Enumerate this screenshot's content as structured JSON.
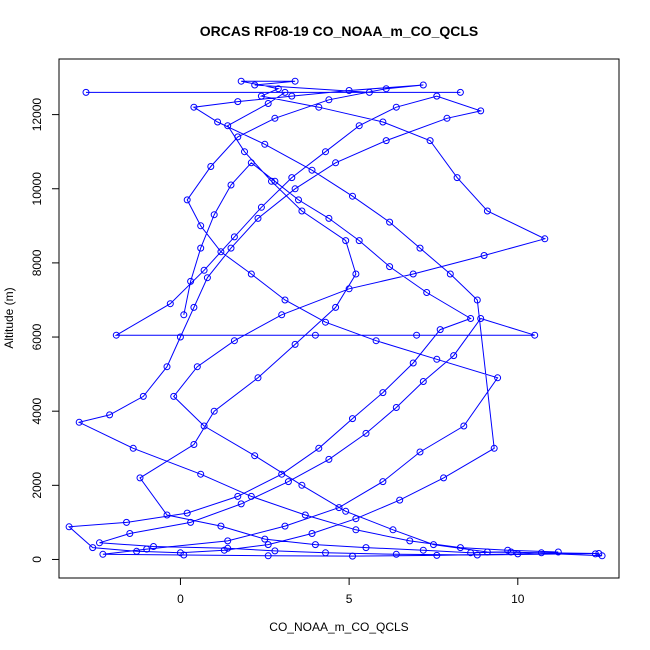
{
  "chart_data": {
    "type": "line",
    "title": "ORCAS RF08-19 CO_NOAA_m_CO_QCLS",
    "xlabel": "CO_NOAA_m_CO_QCLS",
    "ylabel": "Altitude (m)",
    "xlim": [
      -3.6,
      13.0
    ],
    "ylim": [
      -500,
      13500
    ],
    "xticks": [
      0,
      5,
      10
    ],
    "yticks": [
      0,
      2000,
      4000,
      6000,
      8000,
      10000,
      12000
    ],
    "grid": false,
    "marker": "open-circle",
    "series": [
      {
        "color": "#0000ff",
        "points": [
          [
            12.3,
            150
          ],
          [
            12.5,
            100
          ],
          [
            9.8,
            200
          ],
          [
            8.6,
            180
          ],
          [
            7.2,
            250
          ],
          [
            5.5,
            320
          ],
          [
            4.0,
            400
          ],
          [
            2.5,
            550
          ],
          [
            1.2,
            900
          ],
          [
            -0.4,
            1200
          ],
          [
            -1.2,
            2200
          ],
          [
            0.4,
            3100
          ],
          [
            1.0,
            4000
          ],
          [
            2.3,
            4900
          ],
          [
            3.4,
            5800
          ],
          [
            4.6,
            6800
          ],
          [
            5.2,
            7700
          ],
          [
            4.9,
            8600
          ],
          [
            3.6,
            9400
          ],
          [
            2.7,
            10200
          ],
          [
            1.9,
            11000
          ],
          [
            1.4,
            11700
          ],
          [
            2.6,
            12300
          ],
          [
            3.1,
            12600
          ],
          [
            -2.8,
            12600
          ],
          [
            8.3,
            12600
          ],
          [
            5.6,
            12600
          ],
          [
            2.2,
            12800
          ],
          [
            3.4,
            12900
          ],
          [
            1.8,
            12900
          ],
          [
            2.9,
            12700
          ],
          [
            2.4,
            12500
          ],
          [
            4.1,
            12200
          ],
          [
            6.0,
            11800
          ],
          [
            7.4,
            11300
          ],
          [
            8.2,
            10300
          ],
          [
            9.1,
            9400
          ],
          [
            10.8,
            8650
          ],
          [
            9.0,
            8200
          ],
          [
            6.9,
            7700
          ],
          [
            5.0,
            7300
          ],
          [
            3.0,
            6600
          ],
          [
            1.6,
            5900
          ],
          [
            0.5,
            5200
          ],
          [
            -0.2,
            4400
          ],
          [
            0.7,
            3600
          ],
          [
            2.2,
            2800
          ],
          [
            3.6,
            2000
          ],
          [
            4.9,
            1300
          ],
          [
            6.3,
            800
          ],
          [
            7.5,
            400
          ],
          [
            9.1,
            200
          ],
          [
            10.7,
            180
          ],
          [
            12.4,
            160
          ],
          [
            8.8,
            120
          ],
          [
            6.4,
            140
          ],
          [
            4.3,
            180
          ],
          [
            2.8,
            230
          ],
          [
            1.4,
            300
          ],
          [
            -0.8,
            350
          ],
          [
            -2.4,
            450
          ],
          [
            -1.5,
            700
          ],
          [
            0.3,
            1000
          ],
          [
            1.8,
            1500
          ],
          [
            3.2,
            2100
          ],
          [
            4.4,
            2700
          ],
          [
            5.5,
            3400
          ],
          [
            6.4,
            4100
          ],
          [
            7.2,
            4800
          ],
          [
            8.1,
            5500
          ],
          [
            8.9,
            6500
          ],
          [
            10.5,
            6050
          ],
          [
            7.0,
            6050
          ],
          [
            4.0,
            6050
          ],
          [
            -1.9,
            6050
          ],
          [
            -0.3,
            6900
          ],
          [
            0.7,
            7800
          ],
          [
            1.6,
            8700
          ],
          [
            2.4,
            9500
          ],
          [
            3.3,
            10300
          ],
          [
            4.3,
            11000
          ],
          [
            5.3,
            11700
          ],
          [
            6.4,
            12200
          ],
          [
            7.6,
            12500
          ],
          [
            8.9,
            12100
          ],
          [
            7.9,
            11900
          ],
          [
            6.1,
            11300
          ],
          [
            4.6,
            10700
          ],
          [
            3.4,
            10000
          ],
          [
            2.3,
            9200
          ],
          [
            1.5,
            8400
          ],
          [
            0.8,
            7600
          ],
          [
            0.4,
            6800
          ],
          [
            0.0,
            6000
          ],
          [
            -0.4,
            5200
          ],
          [
            -1.1,
            4400
          ],
          [
            -2.1,
            3900
          ],
          [
            -3.0,
            3700
          ],
          [
            -1.4,
            3000
          ],
          [
            0.6,
            2300
          ],
          [
            2.1,
            1700
          ],
          [
            3.7,
            1200
          ],
          [
            5.2,
            800
          ],
          [
            6.8,
            500
          ],
          [
            8.3,
            320
          ],
          [
            9.7,
            250
          ],
          [
            11.2,
            200
          ],
          [
            10.0,
            150
          ],
          [
            7.6,
            110
          ],
          [
            5.1,
            90
          ],
          [
            2.6,
            100
          ],
          [
            0.1,
            120
          ],
          [
            -2.3,
            140
          ],
          [
            -1.0,
            280
          ],
          [
            1.4,
            500
          ],
          [
            3.1,
            900
          ],
          [
            4.7,
            1400
          ],
          [
            6.0,
            2100
          ],
          [
            7.1,
            2900
          ],
          [
            8.4,
            3600
          ],
          [
            9.4,
            4900
          ],
          [
            7.6,
            5400
          ],
          [
            5.8,
            5900
          ],
          [
            4.3,
            6400
          ],
          [
            3.1,
            7000
          ],
          [
            2.1,
            7700
          ],
          [
            1.2,
            8300
          ],
          [
            0.6,
            9000
          ],
          [
            0.2,
            9700
          ],
          [
            0.9,
            10600
          ],
          [
            1.7,
            11400
          ],
          [
            2.8,
            11900
          ],
          [
            4.4,
            12400
          ],
          [
            6.1,
            12700
          ],
          [
            7.2,
            12800
          ],
          [
            5.0,
            12650
          ],
          [
            3.3,
            12500
          ],
          [
            1.7,
            12350
          ],
          [
            0.4,
            12200
          ],
          [
            1.1,
            11800
          ],
          [
            2.5,
            11200
          ],
          [
            3.9,
            10500
          ],
          [
            5.1,
            9800
          ],
          [
            6.2,
            9100
          ],
          [
            7.1,
            8400
          ],
          [
            8.0,
            7700
          ],
          [
            8.8,
            7000
          ],
          [
            9.3,
            3000
          ],
          [
            7.8,
            2200
          ],
          [
            6.5,
            1600
          ],
          [
            5.2,
            1100
          ],
          [
            3.9,
            700
          ],
          [
            2.6,
            400
          ],
          [
            1.3,
            250
          ],
          [
            0.0,
            180
          ],
          [
            -1.3,
            220
          ],
          [
            -2.6,
            320
          ],
          [
            -3.3,
            880
          ],
          [
            -1.6,
            1000
          ],
          [
            0.2,
            1250
          ],
          [
            1.7,
            1700
          ],
          [
            3.0,
            2300
          ],
          [
            4.1,
            3000
          ],
          [
            5.1,
            3800
          ],
          [
            6.0,
            4500
          ],
          [
            6.9,
            5300
          ],
          [
            7.7,
            6200
          ],
          [
            8.6,
            6500
          ],
          [
            7.3,
            7200
          ],
          [
            6.2,
            7900
          ],
          [
            5.3,
            8600
          ],
          [
            4.4,
            9200
          ],
          [
            3.5,
            9700
          ],
          [
            2.8,
            10200
          ],
          [
            2.1,
            10700
          ],
          [
            1.5,
            10100
          ],
          [
            1.0,
            9300
          ],
          [
            0.6,
            8400
          ],
          [
            0.3,
            7500
          ],
          [
            0.1,
            6600
          ]
        ]
      }
    ]
  }
}
